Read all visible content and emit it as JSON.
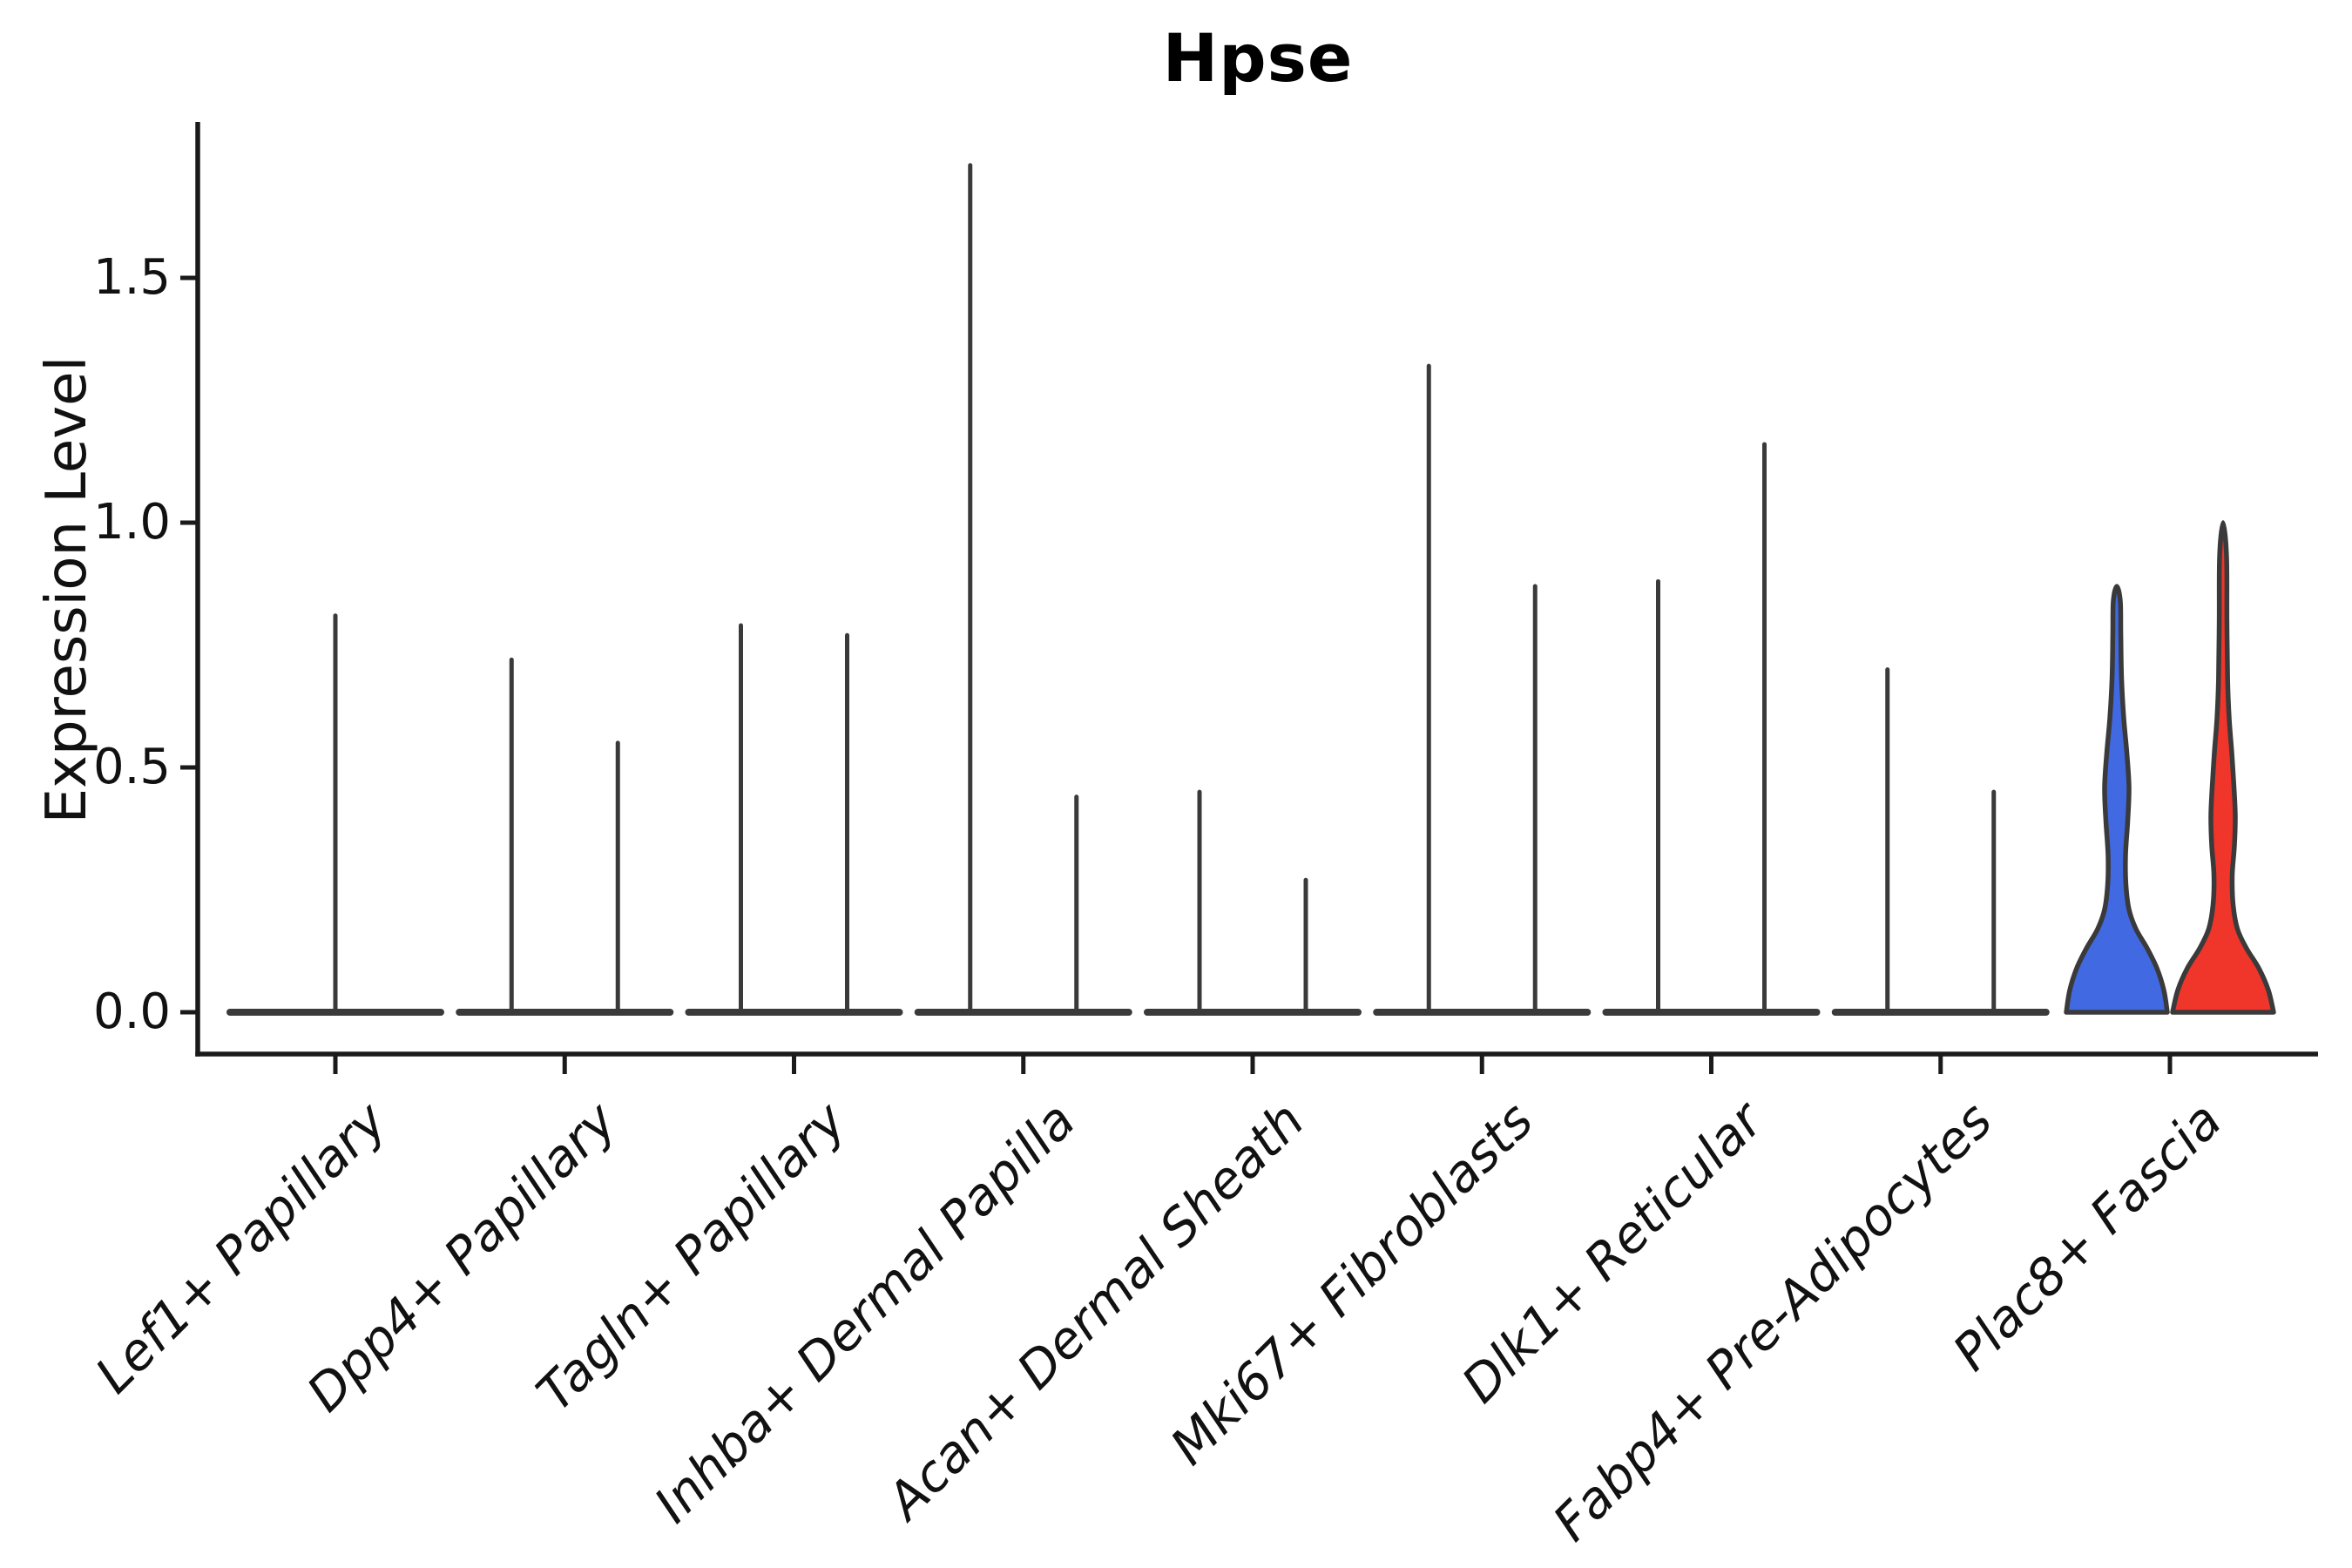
{
  "chart_data": {
    "type": "violin",
    "title": "Hpse",
    "xlabel": "",
    "ylabel": "Expression Level",
    "ytick_labels": [
      "0.0",
      "0.5",
      "1.0",
      "1.5"
    ],
    "ytick_values": [
      0.0,
      0.5,
      1.0,
      1.5
    ],
    "ylim": [
      -0.09,
      1.82
    ],
    "grid": false,
    "legend": "none",
    "categories": [
      "Lef1+ Papillary",
      "Dpp4+ Papillary",
      "Tagln+ Papillary",
      "Inhba+ Dermal Papilla",
      "Acan+ Dermal Sheath",
      "Mki67+ Fibroblasts",
      "Dlk1+ Reticular",
      "Fabp4+ Pre-Adipocytes",
      "Plac8+ Fascia"
    ],
    "description": "Trimmed violins per cell type; two dodged violins per category (one full-width where only one group present). Most mass sits at expression 0 (flat base) with a thin spike up to the max expression value.",
    "violins": [
      {
        "category_index": 0,
        "category": "Lef1+ Papillary",
        "position": "center",
        "baseline": 0.0,
        "spike_top": 0.81,
        "body": false
      },
      {
        "category_index": 1,
        "category": "Dpp4+ Papillary",
        "position": "left",
        "baseline": 0.0,
        "spike_top": 0.72,
        "body": false
      },
      {
        "category_index": 1,
        "category": "Dpp4+ Papillary",
        "position": "right",
        "baseline": 0.0,
        "spike_top": 0.55,
        "body": false
      },
      {
        "category_index": 2,
        "category": "Tagln+ Papillary",
        "position": "left",
        "baseline": 0.0,
        "spike_top": 0.79,
        "body": false
      },
      {
        "category_index": 2,
        "category": "Tagln+ Papillary",
        "position": "right",
        "baseline": 0.0,
        "spike_top": 0.77,
        "body": false
      },
      {
        "category_index": 3,
        "category": "Inhba+ Dermal Papilla",
        "position": "left",
        "baseline": 0.0,
        "spike_top": 1.73,
        "body": false
      },
      {
        "category_index": 3,
        "category": "Inhba+ Dermal Papilla",
        "position": "right",
        "baseline": 0.0,
        "spike_top": 0.44,
        "body": false
      },
      {
        "category_index": 4,
        "category": "Acan+ Dermal Sheath",
        "position": "left",
        "baseline": 0.0,
        "spike_top": 0.45,
        "body": false
      },
      {
        "category_index": 4,
        "category": "Acan+ Dermal Sheath",
        "position": "right",
        "baseline": 0.0,
        "spike_top": 0.27,
        "body": false
      },
      {
        "category_index": 5,
        "category": "Mki67+ Fibroblasts",
        "position": "left",
        "baseline": 0.0,
        "spike_top": 1.32,
        "body": false
      },
      {
        "category_index": 5,
        "category": "Mki67+ Fibroblasts",
        "position": "right",
        "baseline": 0.0,
        "spike_top": 0.87,
        "body": false
      },
      {
        "category_index": 6,
        "category": "Dlk1+ Reticular",
        "position": "left",
        "baseline": 0.0,
        "spike_top": 0.88,
        "body": false
      },
      {
        "category_index": 6,
        "category": "Dlk1+ Reticular",
        "position": "right",
        "baseline": 0.0,
        "spike_top": 1.16,
        "body": false
      },
      {
        "category_index": 7,
        "category": "Fabp4+ Pre-Adipocytes",
        "position": "left",
        "baseline": 0.0,
        "spike_top": 0.7,
        "body": false
      },
      {
        "category_index": 7,
        "category": "Fabp4+ Pre-Adipocytes",
        "position": "right",
        "baseline": 0.0,
        "spike_top": 0.45,
        "body": false
      },
      {
        "category_index": 8,
        "category": "Plac8+ Fascia",
        "position": "left",
        "baseline": 0.0,
        "spike_top": 0.87,
        "body": true,
        "fill": "#4169E1",
        "profile": [
          [
            0,
            58
          ],
          [
            0.045,
            54
          ],
          [
            0.09,
            46
          ],
          [
            0.13,
            35
          ],
          [
            0.17,
            22
          ],
          [
            0.21,
            14
          ],
          [
            0.26,
            10.5
          ],
          [
            0.32,
            10
          ],
          [
            0.39,
            12.5
          ],
          [
            0.46,
            14
          ],
          [
            0.53,
            11.5
          ],
          [
            0.6,
            8
          ],
          [
            0.68,
            5.5
          ],
          [
            0.77,
            4.6
          ],
          [
            0.84,
            4.0
          ],
          [
            0.87,
            0
          ]
        ]
      },
      {
        "category_index": 8,
        "category": "Plac8+ Fascia",
        "position": "right",
        "baseline": 0.0,
        "spike_top": 1.0,
        "body": true,
        "fill": "#F0352B",
        "profile": [
          [
            0,
            58
          ],
          [
            0.045,
            52
          ],
          [
            0.09,
            41
          ],
          [
            0.13,
            27
          ],
          [
            0.17,
            16.5
          ],
          [
            0.22,
            11.5
          ],
          [
            0.28,
            10.5
          ],
          [
            0.34,
            13
          ],
          [
            0.4,
            14
          ],
          [
            0.46,
            12.5
          ],
          [
            0.53,
            10
          ],
          [
            0.6,
            7
          ],
          [
            0.68,
            5.2
          ],
          [
            0.8,
            4.4
          ],
          [
            0.93,
            4.0
          ],
          [
            1.0,
            0
          ]
        ]
      }
    ],
    "colors": {
      "violin_blue_fill": "#4169E1",
      "violin_red_fill": "#F0352B",
      "violin_outline": "#3A3A3A",
      "axis": "#1A1A1A",
      "text": "#111111",
      "background": "#FFFFFF"
    }
  }
}
